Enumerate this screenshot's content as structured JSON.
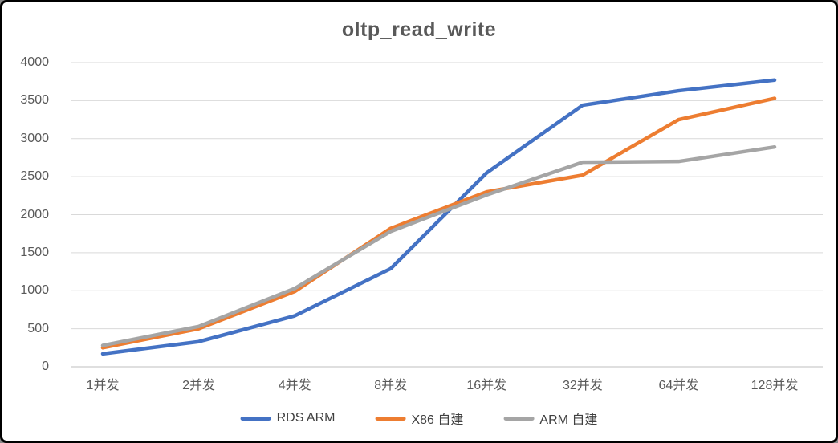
{
  "window": {
    "background": "#FFFFFF",
    "border_color": "#000000"
  },
  "chart_data": {
    "type": "line",
    "title": "oltp_read_write",
    "categories": [
      "1并发",
      "2并发",
      "4并发",
      "8并发",
      "16并发",
      "32并发",
      "64并发",
      "128并发"
    ],
    "series": [
      {
        "name": "RDS ARM",
        "color": "#4472C4",
        "values": [
          170,
          330,
          670,
          1290,
          2550,
          3440,
          3630,
          3770
        ]
      },
      {
        "name": "X86 自建",
        "color": "#ED7D31",
        "values": [
          250,
          500,
          990,
          1820,
          2300,
          2520,
          3250,
          3530
        ]
      },
      {
        "name": "ARM 自建",
        "color": "#A5A5A5",
        "values": [
          280,
          530,
          1030,
          1780,
          2260,
          2690,
          2700,
          2890
        ]
      }
    ],
    "xlabel": "",
    "ylabel": "",
    "ylim": [
      0,
      4000
    ],
    "yticks": [
      0,
      500,
      1000,
      1500,
      2000,
      2500,
      3000,
      3500,
      4000
    ],
    "grid": true,
    "legend_position": "bottom",
    "styles": {
      "grid_color": "#D9D9D9",
      "axis_line_color": "#BFBFBF",
      "tick_label_color": "#595959",
      "title_color": "#595959",
      "legend_text_color": "#404040",
      "line_width": 4.5
    }
  }
}
